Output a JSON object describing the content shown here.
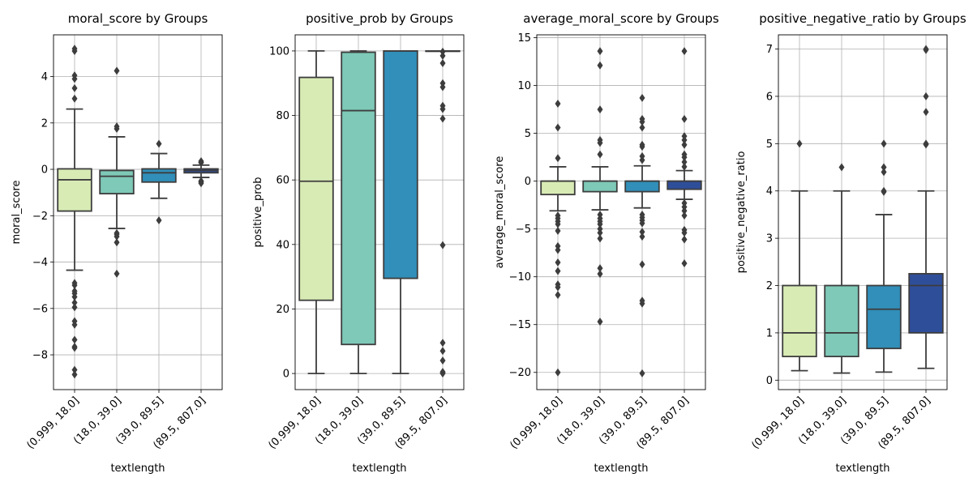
{
  "chart_data": [
    {
      "type": "box",
      "title": "moral_score by Groups",
      "xlabel": "textlength",
      "ylabel": "moral_score",
      "categories": [
        "(0.999, 18.0]",
        "(18.0, 39.0]",
        "(39.0, 89.5]",
        "(89.5, 807.0]"
      ],
      "ylim": [
        -9.5,
        5.8
      ],
      "yticks": [
        -8,
        -6,
        -4,
        -2,
        0,
        2,
        4
      ],
      "grid": true,
      "boxes": [
        {
          "q1": -1.8,
          "median": -0.45,
          "q3": 0.02,
          "whislo": -4.35,
          "whishi": 2.6,
          "fliers": [
            5.2,
            5.1,
            4.05,
            3.9,
            3.5,
            3.05,
            -4.9,
            -5.0,
            -5.25,
            -5.35,
            -5.5,
            -5.75,
            -5.95,
            -6.55,
            -6.7,
            -7.35,
            -7.65,
            -7.7,
            -8.65,
            -8.85
          ]
        },
        {
          "q1": -1.05,
          "median": -0.3,
          "q3": -0.05,
          "whislo": -2.55,
          "whishi": 1.4,
          "fliers": [
            4.25,
            1.85,
            1.75,
            -2.75,
            -2.8,
            -2.9,
            -3.15,
            -4.5
          ]
        },
        {
          "q1": -0.55,
          "median": -0.15,
          "q3": 0.02,
          "whislo": -1.25,
          "whishi": 0.68,
          "fliers": [
            1.1,
            -2.2
          ]
        },
        {
          "q1": -0.15,
          "median": -0.05,
          "q3": 0.02,
          "whislo": -0.35,
          "whishi": 0.18,
          "fliers": [
            0.35,
            0.3,
            0.28,
            -0.5,
            -0.55,
            -0.6
          ]
        }
      ]
    },
    {
      "type": "box",
      "title": "positive_prob by Groups",
      "xlabel": "textlength",
      "ylabel": "positive_prob",
      "categories": [
        "(0.999, 18.0]",
        "(18.0, 39.0]",
        "(39.0, 89.5]",
        "(89.5, 807.0]"
      ],
      "ylim": [
        -5,
        105
      ],
      "yticks": [
        0,
        20,
        40,
        60,
        80,
        100
      ],
      "grid": true,
      "boxes": [
        {
          "q1": 22.7,
          "median": 59.6,
          "q3": 91.8,
          "whislo": 0,
          "whishi": 100,
          "fliers": []
        },
        {
          "q1": 9.0,
          "median": 81.5,
          "q3": 99.6,
          "whislo": 0,
          "whishi": 100,
          "fliers": []
        },
        {
          "q1": 29.5,
          "median": 100,
          "q3": 100,
          "whislo": 0,
          "whishi": 100,
          "fliers": []
        },
        {
          "q1": 100,
          "median": 100,
          "q3": 100,
          "whislo": 100,
          "whishi": 100,
          "fliers": [
            99.8,
            98.5,
            96.2,
            90.0,
            88.8,
            83.0,
            82.0,
            79.0,
            39.8,
            9.5,
            7.0,
            4.0,
            0.5,
            0.2,
            0
          ]
        }
      ]
    },
    {
      "type": "box",
      "title": "average_moral_score by Groups",
      "xlabel": "textlength",
      "ylabel": "average_moral_score",
      "categories": [
        "(0.999, 18.0]",
        "(18.0, 39.0]",
        "(39.0, 89.5]",
        "(89.5, 807.0]"
      ],
      "ylim": [
        -21.8,
        15.3
      ],
      "yticks": [
        -20,
        -15,
        -10,
        -5,
        0,
        5,
        10,
        15
      ],
      "grid": true,
      "boxes": [
        {
          "q1": -1.4,
          "median": 0.0,
          "q3": 0.0,
          "whislo": -3.1,
          "whishi": 1.5,
          "fliers": [
            8.1,
            5.6,
            2.4,
            -3.6,
            -3.9,
            -4.2,
            -4.5,
            -5.2,
            -6.8,
            -7.2,
            -8.5,
            -9.4,
            -10.8,
            -11.1,
            -11.9,
            -20.0
          ]
        },
        {
          "q1": -1.1,
          "median": 0.0,
          "q3": 0.0,
          "whislo": -3.0,
          "whishi": 1.5,
          "fliers": [
            13.6,
            12.1,
            7.5,
            4.3,
            4.0,
            2.8,
            -3.5,
            -3.9,
            -4.2,
            -4.5,
            -5.0,
            -5.4,
            -6.0,
            -9.1,
            -9.7,
            -14.7
          ]
        },
        {
          "q1": -1.1,
          "median": 0.0,
          "q3": 0.0,
          "whislo": -2.8,
          "whishi": 1.6,
          "fliers": [
            8.7,
            6.5,
            6.2,
            5.6,
            3.8,
            3.6,
            2.6,
            2.2,
            -3.5,
            -3.8,
            -4.1,
            -4.4,
            -5.3,
            -5.8,
            -8.7,
            -12.5,
            -12.8,
            -20.1
          ]
        },
        {
          "q1": -0.85,
          "median": 0.0,
          "q3": 0.0,
          "whislo": -1.9,
          "whishi": 1.1,
          "fliers": [
            13.6,
            6.5,
            4.7,
            4.3,
            3.8,
            2.8,
            2.5,
            2.0,
            1.5,
            -2.3,
            -2.7,
            -3.1,
            -3.6,
            -5.1,
            -5.4,
            -6.1,
            -8.6
          ]
        }
      ]
    },
    {
      "type": "box",
      "title": "positive_negative_ratio by Groups",
      "xlabel": "textlength",
      "ylabel": "positive_negative_ratio",
      "categories": [
        "(0.999, 18.0]",
        "(18.0, 39.0]",
        "(39.0, 89.5]",
        "(89.5, 807.0]"
      ],
      "ylim": [
        -0.2,
        7.3
      ],
      "yticks": [
        0,
        1,
        2,
        3,
        4,
        5,
        6,
        7
      ],
      "grid": true,
      "boxes": [
        {
          "q1": 0.5,
          "median": 1.0,
          "q3": 2.0,
          "whislo": 0.2,
          "whishi": 4.0,
          "fliers": [
            5.0
          ]
        },
        {
          "q1": 0.5,
          "median": 1.0,
          "q3": 2.0,
          "whislo": 0.15,
          "whishi": 4.0,
          "fliers": [
            4.5
          ]
        },
        {
          "q1": 0.67,
          "median": 1.5,
          "q3": 2.0,
          "whislo": 0.17,
          "whishi": 3.5,
          "fliers": [
            5.0,
            4.5,
            4.4,
            4.0,
            3.98
          ]
        },
        {
          "q1": 1.0,
          "median": 2.0,
          "q3": 2.25,
          "whislo": 0.25,
          "whishi": 4.0,
          "fliers": [
            7.0,
            6.98,
            6.0,
            5.67,
            5.0,
            4.98
          ]
        }
      ]
    }
  ],
  "colors": {
    "box_fills": [
      "#d8ebb5",
      "#7ec9b7",
      "#318fb9",
      "#2f4e99"
    ],
    "line": "#3d3d3d",
    "grid": "#b0b0b0"
  }
}
